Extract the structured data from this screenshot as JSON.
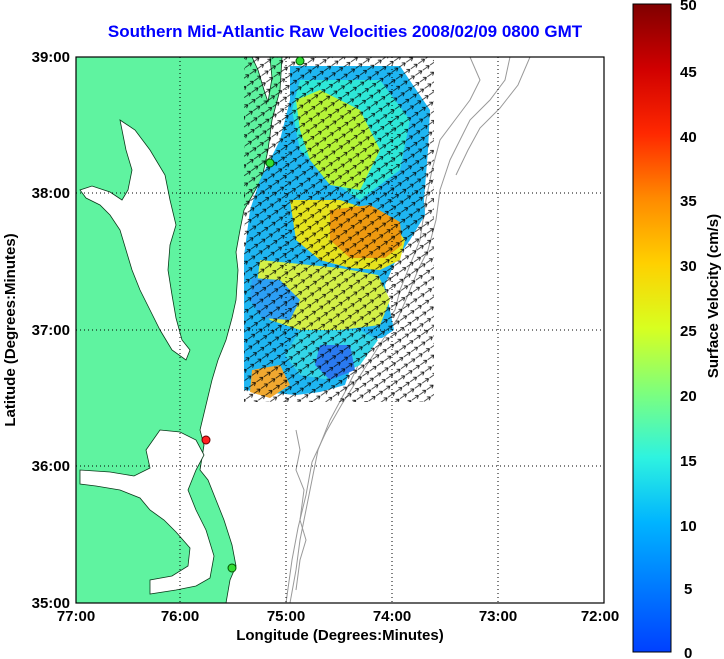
{
  "title": "Southern Mid-Atlantic Raw Velocities 2008/02/09 0800 GMT",
  "x_axis": {
    "label": "Longitude (Degrees:Minutes)",
    "ticks": [
      "77:00",
      "76:00",
      "75:00",
      "74:00",
      "73:00",
      "72:00"
    ]
  },
  "y_axis": {
    "label": "Latitude (Degrees:Minutes)",
    "ticks": [
      "39:00",
      "38:00",
      "37:00",
      "36:00",
      "35:00"
    ]
  },
  "colorbar": {
    "label": "Surface Velocity (cm/s)",
    "min": 0,
    "max": 50,
    "ticks": [
      "50",
      "45",
      "40",
      "35",
      "30",
      "25",
      "20",
      "15",
      "10",
      "5",
      "0"
    ]
  },
  "colors": {
    "title": "#0000ff",
    "land": "#5ff3a0",
    "water": "#ffffff",
    "bathymetry": "#999999",
    "station_active": "#33dd33",
    "station_alert": "#ff2222"
  }
}
